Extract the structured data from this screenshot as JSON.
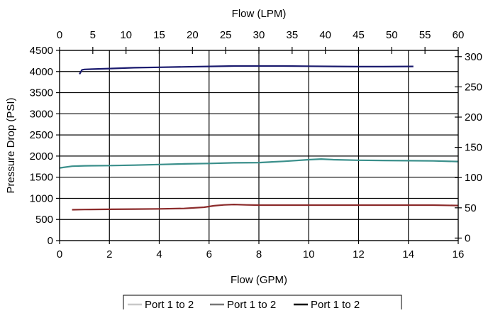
{
  "chart_data": {
    "type": "line",
    "x_bottom": {
      "label": "Flow (GPM)",
      "min": 0,
      "max": 16,
      "ticks": [
        0,
        2,
        4,
        6,
        8,
        10,
        12,
        14,
        16
      ]
    },
    "x_top": {
      "label": "Flow (LPM)",
      "min": 0,
      "max": 60,
      "ticks": [
        0,
        5,
        10,
        15,
        20,
        25,
        30,
        35,
        40,
        45,
        50,
        55,
        60
      ]
    },
    "y_left": {
      "label": "Pressure Drop (PSI)",
      "min": 0,
      "max": 4500,
      "ticks": [
        0,
        500,
        1000,
        1500,
        2000,
        2500,
        3000,
        3500,
        4000,
        4500
      ]
    },
    "y_right": {
      "label": "",
      "min": -4.2,
      "max": 310.3,
      "ticks": [
        0,
        50,
        100,
        150,
        200,
        250,
        300
      ]
    },
    "grid": {
      "vertical": true,
      "horizontal": true
    },
    "legend_position": "bottom",
    "series": [
      {
        "name": "Port 1 to 2",
        "color": "#3a8f8b",
        "x": [
          0.0,
          0.5,
          1.0,
          2.0,
          3.0,
          4.0,
          5.0,
          6.0,
          7.0,
          8.0,
          9.0,
          10.0,
          10.5,
          11.0,
          12.0,
          13.0,
          14.0,
          15.0,
          16.0
        ],
        "y": [
          1720,
          1760,
          1770,
          1775,
          1785,
          1800,
          1815,
          1825,
          1840,
          1845,
          1875,
          1915,
          1930,
          1915,
          1900,
          1895,
          1890,
          1885,
          1870
        ]
      },
      {
        "name": "Port 1 to 2",
        "color": "#8b2a2a",
        "x": [
          0.5,
          1.0,
          2.0,
          3.0,
          4.0,
          5.0,
          5.8,
          6.2,
          6.6,
          7.0,
          7.5,
          8.0,
          9.0,
          10.0,
          11.0,
          12.0,
          13.0,
          14.0,
          15.0,
          16.0
        ],
        "y": [
          730,
          735,
          740,
          745,
          750,
          760,
          790,
          825,
          845,
          855,
          845,
          840,
          840,
          840,
          840,
          840,
          840,
          840,
          840,
          830
        ]
      },
      {
        "name": "Port 1 to 2",
        "color": "#1a1a6e",
        "x": [
          0.8,
          0.9,
          1.0,
          2.0,
          3.0,
          4.0,
          5.0,
          6.0,
          7.0,
          8.0,
          9.0,
          10.0,
          11.0,
          12.0,
          13.0,
          14.2
        ],
        "y": [
          3940,
          4040,
          4050,
          4070,
          4090,
          4100,
          4110,
          4120,
          4130,
          4130,
          4130,
          4125,
          4120,
          4115,
          4115,
          4120
        ]
      }
    ],
    "legend": [
      {
        "label": "Port 1 to 2",
        "color": "#c8c8c8"
      },
      {
        "label": "Port 1 to 2",
        "color": "#777777"
      },
      {
        "label": "Port 1 to 2",
        "color": "#000000"
      }
    ]
  }
}
